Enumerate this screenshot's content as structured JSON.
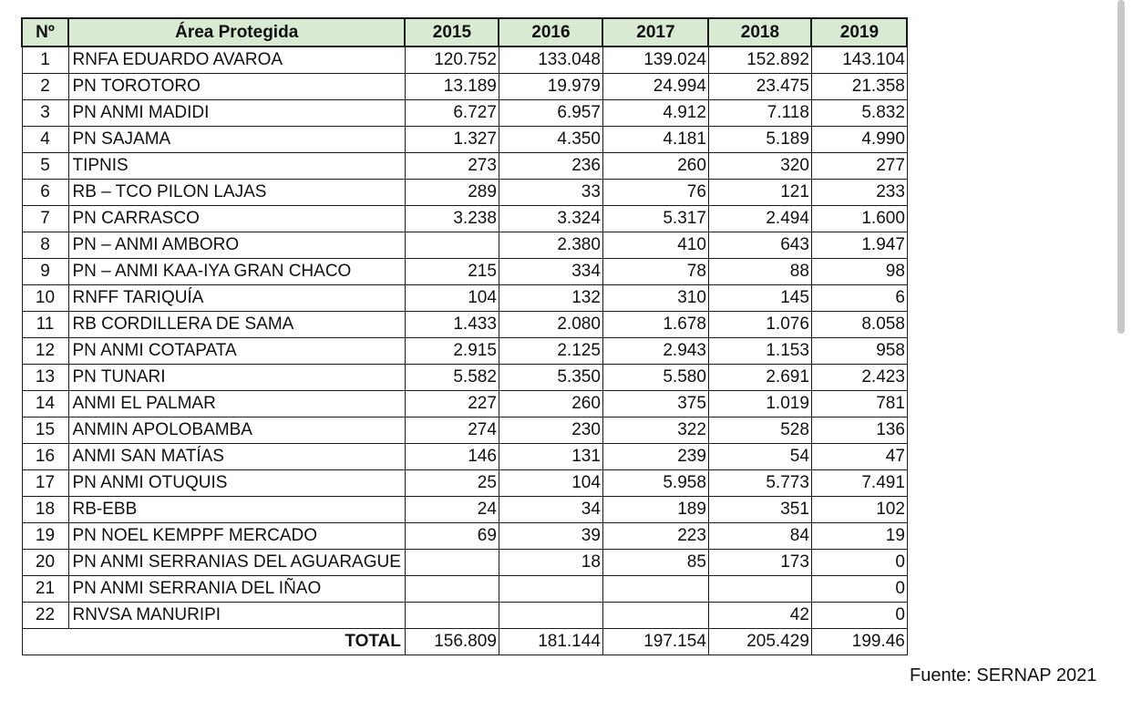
{
  "table": {
    "headers": [
      "Nº",
      "Área Protegida",
      "2015",
      "2016",
      "2017",
      "2018",
      "2019"
    ],
    "rows": [
      {
        "n": "1",
        "area": "RNFA EDUARDO AVAROA",
        "v": [
          "120.752",
          "133.048",
          "139.024",
          "152.892",
          "143.104"
        ]
      },
      {
        "n": "2",
        "area": "PN TOROTORO",
        "v": [
          "13.189",
          "19.979",
          "24.994",
          "23.475",
          "21.358"
        ]
      },
      {
        "n": "3",
        "area": "PN ANMI MADIDI",
        "v": [
          "6.727",
          "6.957",
          "4.912",
          "7.118",
          "5.832"
        ]
      },
      {
        "n": "4",
        "area": "PN SAJAMA",
        "v": [
          "1.327",
          "4.350",
          "4.181",
          "5.189",
          "4.990"
        ]
      },
      {
        "n": "5",
        "area": "TIPNIS",
        "v": [
          "273",
          "236",
          "260",
          "320",
          "277"
        ]
      },
      {
        "n": "6",
        "area": "RB – TCO PILON LAJAS",
        "v": [
          "289",
          "33",
          "76",
          "121",
          "233"
        ]
      },
      {
        "n": "7",
        "area": "PN CARRASCO",
        "v": [
          "3.238",
          "3.324",
          "5.317",
          "2.494",
          "1.600"
        ]
      },
      {
        "n": "8",
        "area": "PN – ANMI AMBORO",
        "v": [
          "",
          "2.380",
          "410",
          "643",
          "1.947"
        ]
      },
      {
        "n": "9",
        "area": "PN – ANMI KAA-IYA GRAN CHACO",
        "v": [
          "215",
          "334",
          "78",
          "88",
          "98"
        ]
      },
      {
        "n": "10",
        "area": "RNFF TARIQUÍA",
        "v": [
          "104",
          "132",
          "310",
          "145",
          "6"
        ]
      },
      {
        "n": "11",
        "area": "RB CORDILLERA DE SAMA",
        "v": [
          "1.433",
          "2.080",
          "1.678",
          "1.076",
          "8.058"
        ]
      },
      {
        "n": "12",
        "area": "PN ANMI COTAPATA",
        "v": [
          "2.915",
          "2.125",
          "2.943",
          "1.153",
          "958"
        ]
      },
      {
        "n": "13",
        "area": "PN TUNARI",
        "v": [
          "5.582",
          "5.350",
          "5.580",
          "2.691",
          "2.423"
        ]
      },
      {
        "n": "14",
        "area": "ANMI EL PALMAR",
        "v": [
          "227",
          "260",
          "375",
          "1.019",
          "781"
        ]
      },
      {
        "n": "15",
        "area": "ANMIN APOLOBAMBA",
        "v": [
          "274",
          "230",
          "322",
          "528",
          "136"
        ]
      },
      {
        "n": "16",
        "area": "ANMI SAN MATÍAS",
        "v": [
          "146",
          "131",
          "239",
          "54",
          "47"
        ]
      },
      {
        "n": "17",
        "area": "PN ANMI OTUQUIS",
        "v": [
          "25",
          "104",
          "5.958",
          "5.773",
          "7.491"
        ]
      },
      {
        "n": "18",
        "area": "RB-EBB",
        "v": [
          "24",
          "34",
          "189",
          "351",
          "102"
        ]
      },
      {
        "n": "19",
        "area": "PN NOEL KEMPPF MERCADO",
        "v": [
          "69",
          "39",
          "223",
          "84",
          "19"
        ]
      },
      {
        "n": "20",
        "area": "PN ANMI SERRANIAS DEL AGUARAGUE",
        "v": [
          "",
          "18",
          "85",
          "173",
          "0"
        ]
      },
      {
        "n": "21",
        "area": "PN ANMI SERRANIA DEL IÑAO",
        "v": [
          "",
          "",
          "",
          "",
          "0"
        ]
      },
      {
        "n": "22",
        "area": "RNVSA MANURIPI",
        "v": [
          "",
          "",
          "",
          "42",
          "0"
        ]
      }
    ],
    "total": {
      "label": "TOTAL",
      "v": [
        "156.809",
        "181.144",
        "197.154",
        "205.429",
        "199.46"
      ]
    }
  },
  "source": "Fuente: SERNAP 2021",
  "colors": {
    "header_bg": "#d9ead3",
    "border": "#1a1a1a"
  }
}
